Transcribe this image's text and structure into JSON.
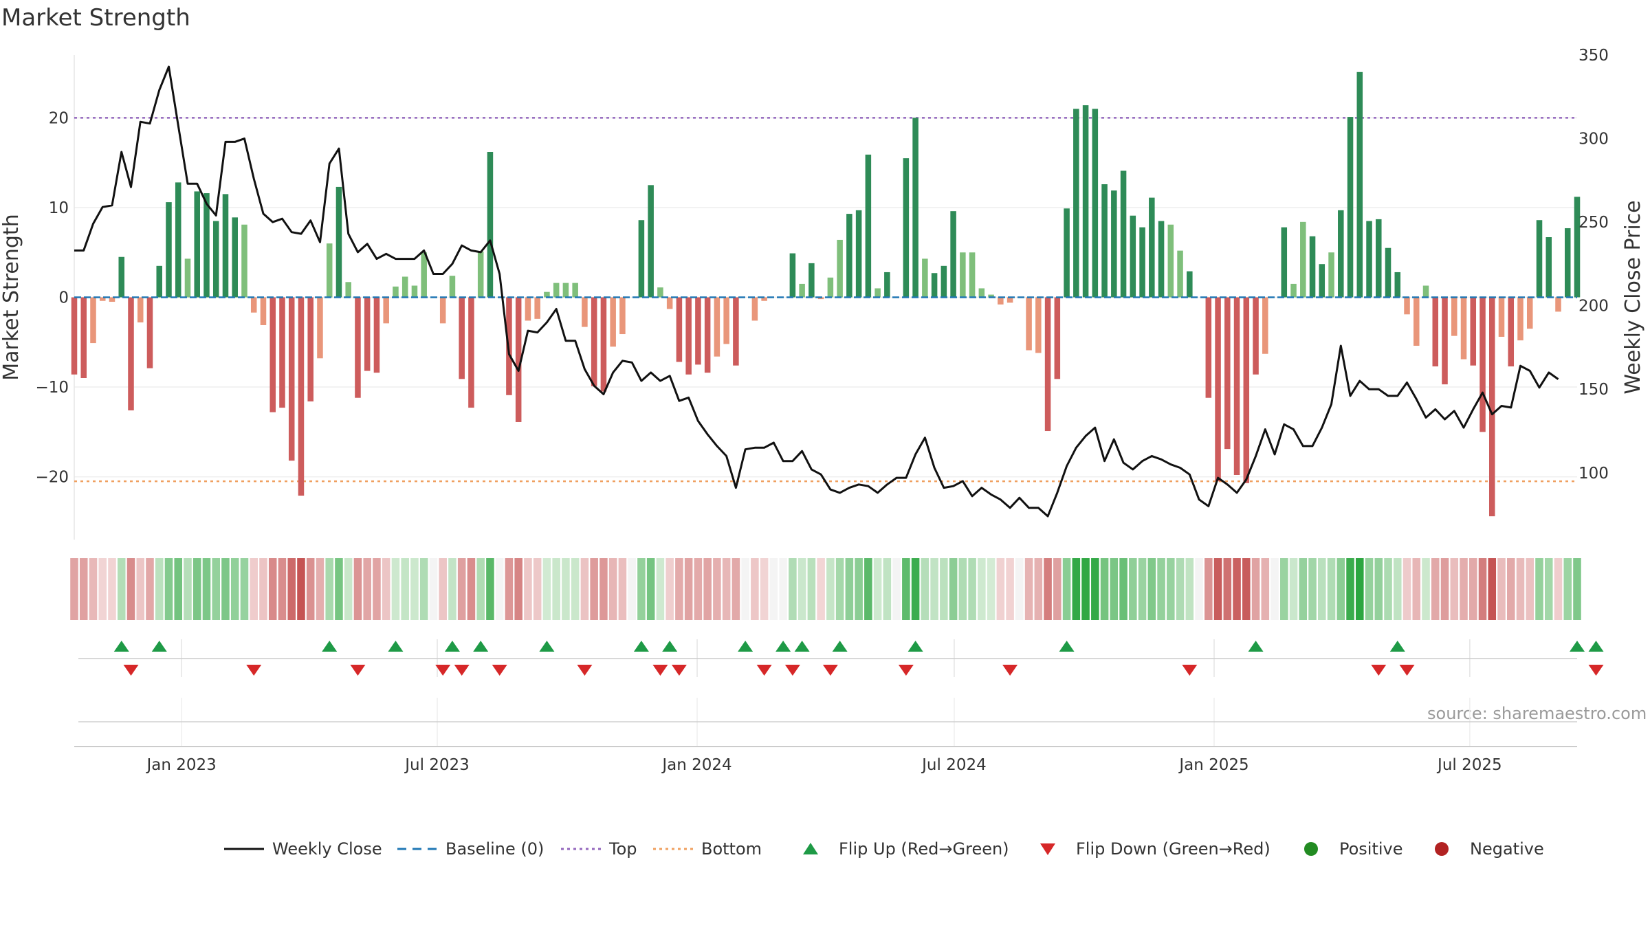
{
  "chart_data": {
    "type": "bar",
    "title": "Market Strength",
    "ylabel": "Market Strength",
    "y2label": "Weekly Close Price",
    "ylim": [
      -27,
      27
    ],
    "y2lim": [
      60,
      350
    ],
    "yticks": [
      -20,
      -10,
      0,
      10,
      20
    ],
    "y2ticks": [
      100,
      150,
      200,
      250,
      300,
      350
    ],
    "xstart": "2022-10-17",
    "xend": "2025-09-15",
    "xticks": [
      {
        "date": "2023-01-01",
        "label": "Jan 2023"
      },
      {
        "date": "2023-07-01",
        "label": "Jul 2023"
      },
      {
        "date": "2024-01-01",
        "label": "Jan 2024"
      },
      {
        "date": "2024-07-01",
        "label": "Jul 2024"
      },
      {
        "date": "2025-01-01",
        "label": "Jan 2025"
      },
      {
        "date": "2025-07-01",
        "label": "Jul 2025"
      }
    ],
    "top_level": 20,
    "bottom_level": -20.5,
    "strength_values": [
      -8.6,
      -9,
      -5.1,
      -0.4,
      -0.5,
      4.5,
      -12.6,
      -2.8,
      -7.9,
      3.5,
      10.6,
      12.8,
      4.3,
      11.8,
      11.6,
      8.5,
      11.5,
      8.9,
      8.1,
      -1.7,
      -3.1,
      -12.8,
      -12.3,
      -18.2,
      -22.1,
      -11.6,
      -6.8,
      6,
      12.3,
      1.7,
      -11.2,
      -8.2,
      -8.4,
      -2.9,
      1.2,
      2.3,
      1.3,
      5,
      0,
      -2.9,
      2.4,
      -9.1,
      -12.3,
      5.1,
      16.2,
      0,
      -10.9,
      -13.9,
      -2.6,
      -2.4,
      0.6,
      1.6,
      1.6,
      1.6,
      -3.3,
      -9.9,
      -10.5,
      -5.5,
      -4.1,
      0,
      8.6,
      12.5,
      1.1,
      -1.3,
      -7.2,
      -8.6,
      -7.5,
      -8.4,
      -6.6,
      -5.2,
      -7.6,
      0,
      -2.6,
      -0.4,
      0,
      0,
      4.9,
      1.5,
      3.8,
      -0.2,
      2.2,
      6.4,
      9.3,
      9.7,
      15.9,
      1,
      2.8,
      0,
      15.5,
      20,
      4.3,
      2.7,
      3.5,
      9.6,
      5,
      5,
      1,
      0.3,
      -0.8,
      -0.6,
      0,
      -5.9,
      -6.2,
      -14.9,
      -9.1,
      9.9,
      21,
      21.4,
      21,
      12.6,
      11.9,
      14.1,
      9.1,
      7.8,
      11.1,
      8.5,
      8.1,
      5.2,
      2.9,
      0,
      -11.2,
      -20.5,
      -16.9,
      -19.8,
      -20.7,
      -8.6,
      -6.3,
      0,
      7.8,
      1.5,
      8.4,
      6.8,
      3.7,
      5,
      9.7,
      20.1,
      25.1,
      8.5,
      8.7,
      5.5,
      2.8,
      -1.9,
      -5.4,
      1.3,
      -7.7,
      -9.7,
      -4.3,
      -6.9,
      -7.6,
      -15,
      -24.4,
      -4.4,
      -7.7,
      -4.8,
      -3.5,
      8.6,
      6.7,
      -1.6,
      7.7,
      11.2
    ],
    "close_values": [
      233,
      233,
      249,
      259,
      260,
      292,
      271,
      310,
      309,
      329,
      343,
      308,
      273,
      273,
      261,
      254,
      298,
      298,
      300,
      276,
      255,
      250,
      252,
      244,
      243,
      251,
      238,
      285,
      294,
      243,
      232,
      237,
      228,
      231,
      228,
      228,
      228,
      233,
      219,
      219,
      225,
      236,
      233,
      232,
      239,
      219,
      171,
      161,
      185,
      184,
      190,
      198,
      179,
      179,
      162,
      152,
      147,
      160,
      167,
      166,
      155,
      160,
      155,
      158,
      143,
      145,
      131,
      123,
      116,
      110,
      91,
      114,
      115,
      115,
      118,
      107,
      107,
      113,
      102,
      99,
      90,
      88,
      91,
      93,
      92,
      88,
      93,
      97,
      97,
      111,
      121,
      103,
      91,
      92,
      95,
      86,
      91,
      87,
      84,
      79,
      85,
      79,
      79,
      74,
      88,
      104,
      115,
      122,
      127,
      107,
      120,
      106,
      102,
      107,
      110,
      108,
      105,
      103,
      99,
      84,
      80,
      97,
      93,
      88,
      96,
      110,
      126,
      111,
      129,
      126,
      116,
      116,
      127,
      141,
      176,
      146,
      155,
      150,
      150,
      146,
      146,
      154,
      144,
      133,
      138,
      132,
      137,
      127,
      138,
      148,
      135,
      140,
      139,
      164,
      161,
      151,
      160,
      156
    ],
    "flip_up_weeks": [
      5,
      9,
      27,
      34,
      40,
      43,
      50,
      60,
      63,
      71,
      75,
      77,
      81,
      89,
      105,
      125,
      140,
      159,
      161
    ],
    "flip_down_weeks": [
      6,
      19,
      30,
      39,
      41,
      45,
      54,
      62,
      64,
      73,
      76,
      80,
      88,
      99,
      118,
      138,
      141,
      161
    ],
    "legend": [
      {
        "label": "Weekly Close",
        "kind": "line",
        "color": "#111111"
      },
      {
        "label": "Baseline (0)",
        "kind": "dash",
        "color": "#1f77b4"
      },
      {
        "label": "Top",
        "kind": "dotted",
        "color": "#9467bd"
      },
      {
        "label": "Bottom",
        "kind": "dotted",
        "color": "#f0a060"
      },
      {
        "label": "Flip Up (Red→Green)",
        "kind": "tri-up",
        "color": "#1e9a46"
      },
      {
        "label": "Flip Down (Green→Red)",
        "kind": "tri-down",
        "color": "#d62728"
      },
      {
        "label": "Positive",
        "kind": "dot",
        "color": "#228b22"
      },
      {
        "label": "Negative",
        "kind": "dot",
        "color": "#b22222"
      }
    ],
    "colors": {
      "strong_positive": "#2e8b57",
      "weak_positive": "#7fbf7b",
      "strong_negative": "#cd5c5c",
      "weak_negative": "#e9967a",
      "close_line": "#111111"
    }
  },
  "source": "source: sharemaestro.com"
}
